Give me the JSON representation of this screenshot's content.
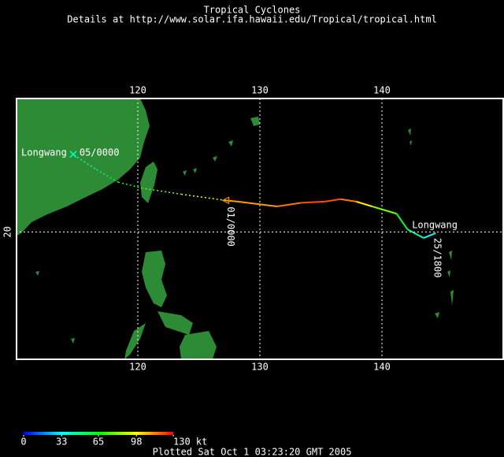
{
  "header": {
    "title": "Tropical Cyclones",
    "subtitle": "Details at http://www.solar.ifa.hawaii.edu/Tropical/tropical.html"
  },
  "map": {
    "xlim": [
      110,
      150
    ],
    "ylim": [
      9.5,
      31
    ],
    "xticks": [
      120,
      130,
      140
    ],
    "yticks": [
      20
    ],
    "grid": true,
    "storm": {
      "name": "Longwang",
      "start": "25/1800",
      "marker": "01/0000",
      "end": "05/0000"
    },
    "track": [
      {
        "lon": 144.4,
        "lat": 19.9,
        "kt": 30
      },
      {
        "lon": 143.4,
        "lat": 19.5,
        "kt": 33
      },
      {
        "lon": 142.1,
        "lat": 20.2,
        "kt": 45
      },
      {
        "lon": 141.2,
        "lat": 21.5,
        "kt": 60
      },
      {
        "lon": 139.2,
        "lat": 22.1,
        "kt": 80
      },
      {
        "lon": 137.9,
        "lat": 22.5,
        "kt": 100
      },
      {
        "lon": 136.6,
        "lat": 22.7,
        "kt": 115
      },
      {
        "lon": 135.3,
        "lat": 22.5,
        "kt": 120
      },
      {
        "lon": 133.4,
        "lat": 22.4,
        "kt": 120
      },
      {
        "lon": 131.4,
        "lat": 22.1,
        "kt": 115
      },
      {
        "lon": 128.2,
        "lat": 22.5,
        "kt": 110
      },
      {
        "lon": 127.2,
        "lat": 22.6,
        "kt": 110
      }
    ],
    "forecast": [
      {
        "lon": 123.6,
        "lat": 23.1,
        "kt": 95
      },
      {
        "lon": 120.4,
        "lat": 23.6,
        "kt": 80
      },
      {
        "lon": 118.4,
        "lat": 24.1,
        "kt": 70
      },
      {
        "lon": 116.5,
        "lat": 25.2,
        "kt": 55
      },
      {
        "lon": 114.7,
        "lat": 26.4,
        "kt": 40
      }
    ]
  },
  "colorbar": {
    "lim": [
      0,
      130
    ],
    "ticks": [
      0,
      33,
      65,
      98,
      {
        "value": 130,
        "label": "130 kt"
      }
    ]
  },
  "footer": "Plotted Sat Oct 1 03:23:20 GMT 2005"
}
